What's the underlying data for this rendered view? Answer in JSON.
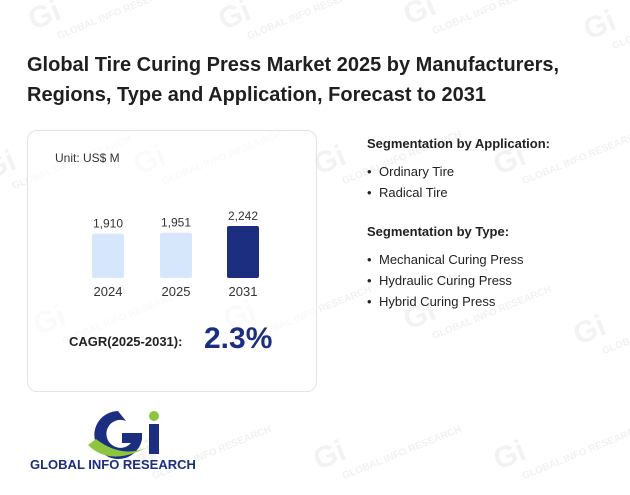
{
  "title": "Global Tire Curing Press Market 2025 by Manufacturers, Regions, Type and Application, Forecast to 2031",
  "chart": {
    "unit": "Unit: US$ M",
    "cagr_label": "CAGR(2025-2031):",
    "cagr_value": "2.3%"
  },
  "chart_data": {
    "type": "bar",
    "categories": [
      "2024",
      "2025",
      "2031"
    ],
    "values": [
      1910,
      1951,
      2242
    ],
    "value_labels": [
      "1,910",
      "1,951",
      "2,242"
    ],
    "title": "",
    "xlabel": "",
    "ylabel": "",
    "grid": false,
    "colors": [
      "#d6e6fb",
      "#d6e6fb",
      "#1b2e80"
    ]
  },
  "segments": {
    "application": {
      "heading": "Segmentation by Application:",
      "items": [
        "Ordinary Tire",
        "Radical Tire"
      ]
    },
    "type": {
      "heading": "Segmentation by Type:",
      "items": [
        "Mechanical Curing Press",
        "Hydraulic Curing Press",
        "Hybrid Curing Press"
      ]
    }
  },
  "logo": {
    "text": "GLOBAL INFO RESEARCH",
    "colors": {
      "navy": "#1b2e80",
      "green": "#8cc63f"
    }
  },
  "watermark": {
    "text": "GLOBAL INFO RESEARCH"
  }
}
